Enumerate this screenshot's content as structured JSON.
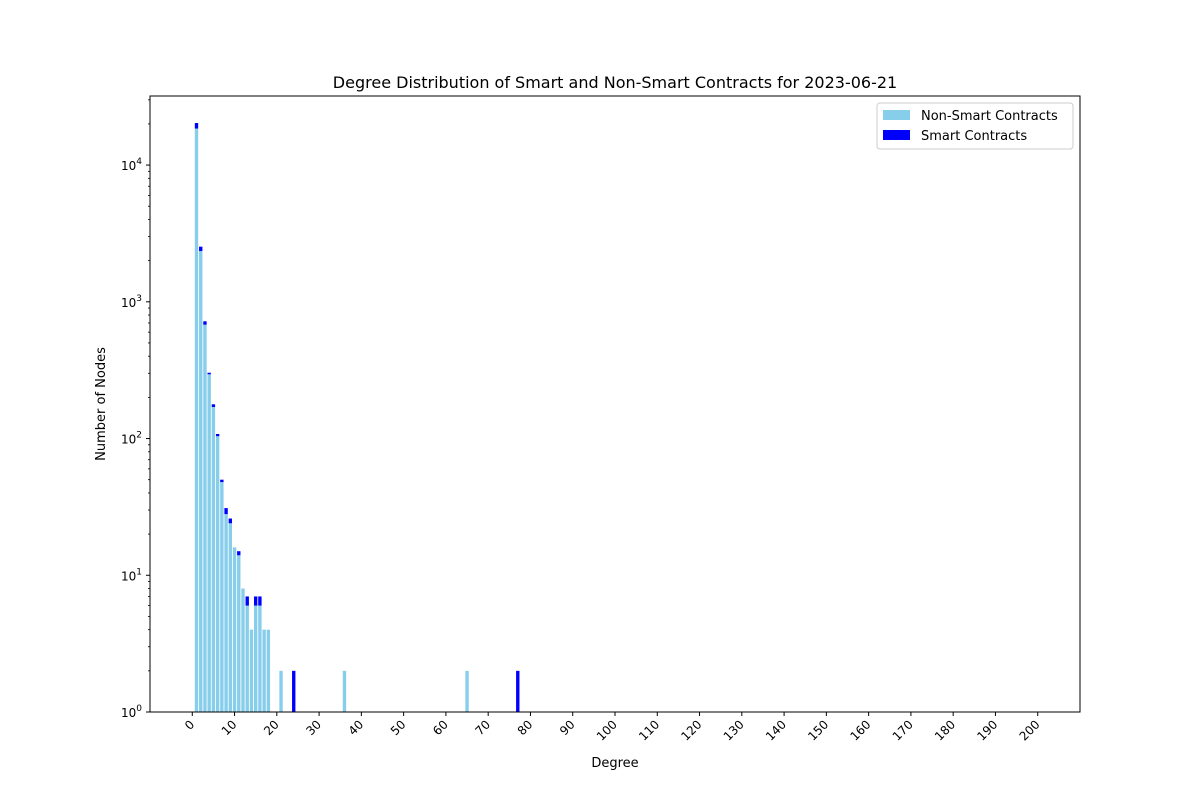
{
  "chart_data": {
    "type": "bar",
    "stacked": true,
    "log_y": true,
    "title": "Degree Distribution of Smart and Non-Smart Contracts for 2023-06-21",
    "xlabel": "Degree",
    "ylabel": "Number of Nodes",
    "xlim": [
      -10,
      210
    ],
    "ylim": [
      1,
      32000
    ],
    "xticks": [
      0,
      10,
      20,
      30,
      40,
      50,
      60,
      70,
      80,
      90,
      100,
      110,
      120,
      130,
      140,
      150,
      160,
      170,
      180,
      190,
      200
    ],
    "xtick_labels": [
      "0",
      "10",
      "20",
      "30",
      "40",
      "50",
      "60",
      "70",
      "80",
      "90",
      "100",
      "110",
      "120",
      "130",
      "140",
      "150",
      "160",
      "170",
      "180",
      "190",
      "200"
    ],
    "yticks": [
      1,
      10,
      100,
      1000,
      10000
    ],
    "ytick_labels": [
      {
        "base": "10",
        "exp": "0"
      },
      {
        "base": "10",
        "exp": "1"
      },
      {
        "base": "10",
        "exp": "2"
      },
      {
        "base": "10",
        "exp": "3"
      },
      {
        "base": "10",
        "exp": "4"
      }
    ],
    "legend_position": "top-right",
    "grid": false,
    "series": [
      {
        "name": "Non-Smart Contracts",
        "color": "#87ceeb",
        "x": [
          1,
          2,
          3,
          4,
          5,
          6,
          7,
          8,
          9,
          10,
          11,
          12,
          13,
          14,
          15,
          16,
          17,
          18,
          21,
          36,
          65
        ],
        "values": [
          18500,
          2350,
          680,
          295,
          170,
          104,
          48,
          28,
          24,
          16,
          14,
          8,
          6,
          4,
          6,
          6,
          4,
          4,
          2,
          2,
          2
        ]
      },
      {
        "name": "Smart Contracts",
        "color": "#0000ff",
        "x": [
          1,
          2,
          3,
          4,
          5,
          6,
          7,
          8,
          9,
          11,
          13,
          15,
          16,
          24,
          77
        ],
        "values": [
          1800,
          180,
          40,
          8,
          8,
          4,
          2,
          3,
          2,
          1,
          1,
          1,
          1,
          2,
          2
        ]
      }
    ]
  }
}
